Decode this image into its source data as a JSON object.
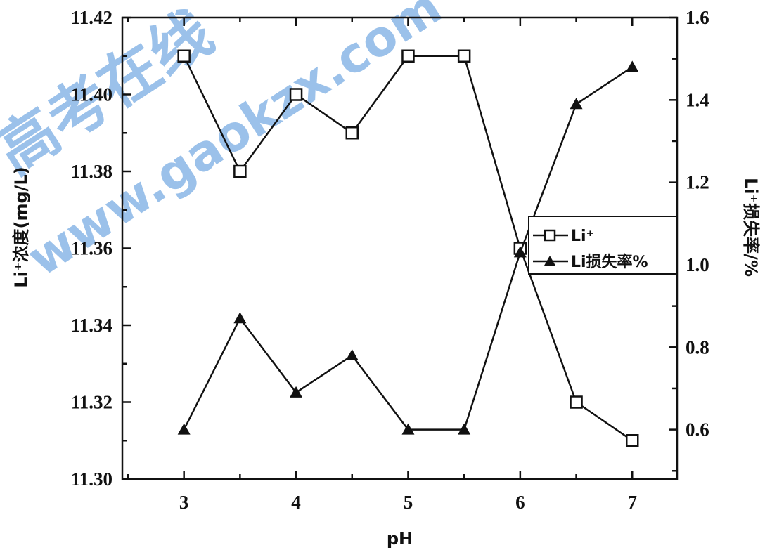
{
  "chart_data": {
    "type": "line",
    "xlabel": "pH",
    "ylabel": "Li⁺浓度(mg/L)",
    "y2label": "Li⁺损失率/%",
    "xlim": [
      2.45,
      7.4
    ],
    "ylim": [
      11.3,
      11.42
    ],
    "y2lim": [
      0.48,
      1.6
    ],
    "xticks": [
      "3",
      "4",
      "5",
      "6",
      "7"
    ],
    "yticks": [
      "11.30",
      "11.32",
      "11.34",
      "11.36",
      "11.38",
      "11.40",
      "11.42"
    ],
    "y2ticks": [
      "0.6",
      "0.8",
      "1.0",
      "1.2",
      "1.4",
      "1.6"
    ],
    "legend_position": "right-middle",
    "x": [
      3,
      3.5,
      4,
      4.5,
      5,
      5.5,
      6,
      6.5,
      7
    ],
    "series": [
      {
        "name": "Li⁺",
        "axis": "left",
        "marker": "square",
        "values": [
          11.41,
          11.38,
          11.4,
          11.39,
          11.41,
          11.41,
          11.36,
          11.32,
          11.31
        ]
      },
      {
        "name": "Li损失率%",
        "axis": "right",
        "marker": "triangle",
        "values": [
          0.6,
          0.87,
          0.69,
          0.78,
          0.6,
          0.6,
          1.03,
          1.39,
          1.48
        ]
      }
    ],
    "watermark": [
      "高考在线",
      "www.gaokzx.com"
    ]
  }
}
